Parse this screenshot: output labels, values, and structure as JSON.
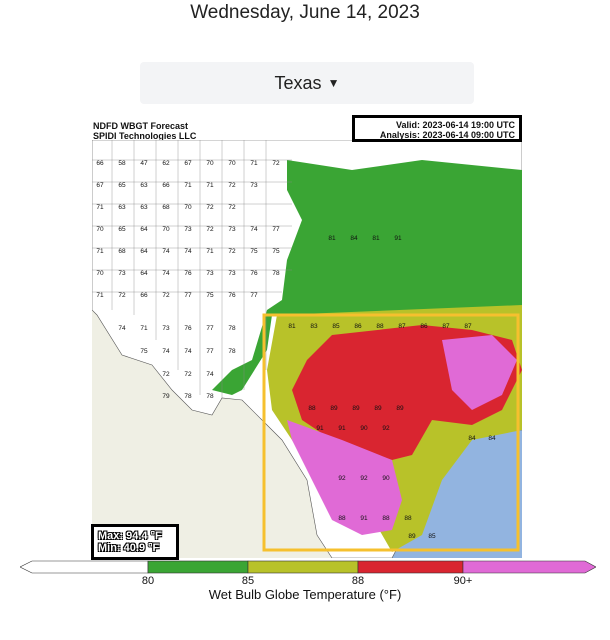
{
  "date": "Wednesday, June 14, 2023",
  "region_selector": {
    "value": "Texas"
  },
  "map": {
    "header_left": [
      "NDFD WBGT Forecast",
      "SPIDI Technologies LLC"
    ],
    "header_right": [
      "Valid: 2023-06-14 19:00 UTC",
      "Analysis: 2023-06-14 09:00 UTC"
    ],
    "max_label": "Max: 94.4 °F",
    "min_label": "Min: 40.9 °F",
    "highlight_color": "#f6c02e"
  },
  "legend": {
    "title": "Wet Bulb Globe Temperature (°F)",
    "ticks": [
      "80",
      "85",
      "88",
      "90+"
    ],
    "colors": {
      "below_80": "#ffffff",
      "80_85": "#3aa534",
      "85_88": "#b8c229",
      "88_90": "#d92530",
      "90_plus": "#e06ad6"
    }
  }
}
